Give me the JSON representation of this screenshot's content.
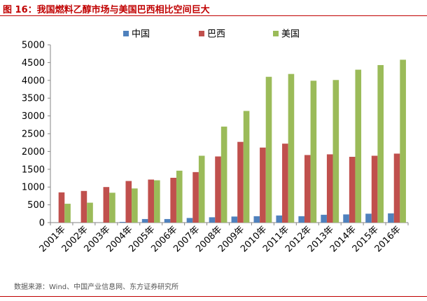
{
  "figure": {
    "title": "图 16：我国燃料乙醇市场与美国巴西相比空间巨大",
    "source": "数据来源：Wind、中国产业信息网、东方证券研究所"
  },
  "colors": {
    "accent": "#c00000"
  },
  "chart_data": {
    "type": "bar",
    "title": "",
    "xlabel": "",
    "ylabel": "",
    "ylim": [
      0,
      5000
    ],
    "yticks": [
      0,
      500,
      1000,
      1500,
      2000,
      2500,
      3000,
      3500,
      4000,
      4500,
      5000
    ],
    "grid": false,
    "legend_position": "top",
    "categories": [
      "2001年",
      "2002年",
      "2003年",
      "2004年",
      "2005年",
      "2006年",
      "2007年",
      "2008年",
      "2009年",
      "2010年",
      "2011年",
      "2012年",
      "2013年",
      "2014年",
      "2015年",
      "2016年"
    ],
    "series": [
      {
        "name": "中国",
        "color": "#4f81bd",
        "values": [
          0,
          0,
          0,
          20,
          100,
          100,
          130,
          150,
          170,
          180,
          200,
          180,
          220,
          230,
          250,
          260
        ]
      },
      {
        "name": "巴西",
        "color": "#c0504d",
        "values": [
          850,
          890,
          1000,
          1170,
          1210,
          1260,
          1420,
          1860,
          2270,
          2110,
          2220,
          1900,
          1920,
          1850,
          1880,
          1940
        ]
      },
      {
        "name": "美国",
        "color": "#9bbb59",
        "values": [
          530,
          560,
          840,
          960,
          1190,
          1460,
          1880,
          2700,
          3140,
          4100,
          4180,
          3990,
          4010,
          4300,
          4430,
          4580
        ]
      }
    ]
  }
}
